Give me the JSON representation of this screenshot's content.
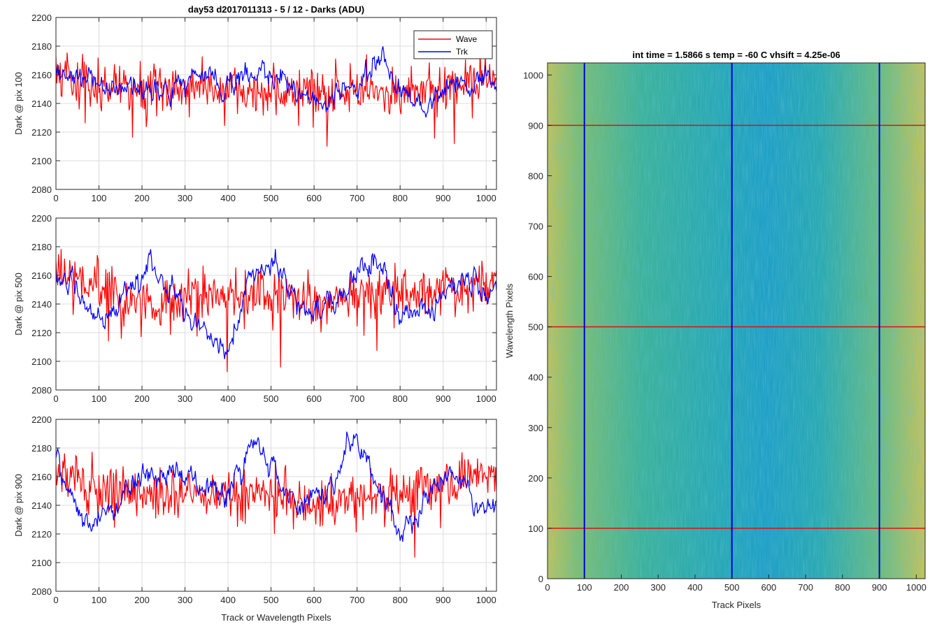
{
  "figure": {
    "title": "day53 d2017011313 - 5 / 12 - Darks (ADU)"
  },
  "chart_data": [
    {
      "type": "line",
      "ylabel": "Dark @ pix 100",
      "xlabel": "",
      "xlim": [
        0,
        1024
      ],
      "ylim": [
        2080,
        2200
      ],
      "xticks": [
        0,
        100,
        200,
        300,
        400,
        500,
        600,
        700,
        800,
        900,
        1000
      ],
      "yticks": [
        2080,
        2100,
        2120,
        2140,
        2160,
        2180,
        2200
      ],
      "grid": true,
      "legend": {
        "position": "top-right",
        "entries": [
          "Wave",
          "Trk"
        ]
      },
      "series": [
        {
          "name": "Wave",
          "color": "#ff0000",
          "mean": 2150,
          "noise": 8,
          "envelope": [
            [
              0,
              2162
            ],
            [
              100,
              2152
            ],
            [
              300,
              2150
            ],
            [
              500,
              2147
            ],
            [
              700,
              2148
            ],
            [
              900,
              2150
            ],
            [
              1024,
              2158
            ]
          ]
        },
        {
          "name": "Trk",
          "color": "#0000ff",
          "mean": 2152,
          "noise": 4,
          "envelope": [
            [
              0,
              2157
            ],
            [
              50,
              2158
            ],
            [
              120,
              2150
            ],
            [
              200,
              2150
            ],
            [
              280,
              2152
            ],
            [
              350,
              2163
            ],
            [
              380,
              2150
            ],
            [
              430,
              2158
            ],
            [
              480,
              2160
            ],
            [
              550,
              2150
            ],
            [
              620,
              2140
            ],
            [
              700,
              2155
            ],
            [
              760,
              2172
            ],
            [
              800,
              2150
            ],
            [
              850,
              2140
            ],
            [
              900,
              2150
            ],
            [
              950,
              2158
            ],
            [
              1000,
              2158
            ],
            [
              1024,
              2150
            ]
          ]
        }
      ]
    },
    {
      "type": "line",
      "ylabel": "Dark @ pix 500",
      "xlabel": "",
      "xlim": [
        0,
        1024
      ],
      "ylim": [
        2080,
        2200
      ],
      "xticks": [
        0,
        100,
        200,
        300,
        400,
        500,
        600,
        700,
        800,
        900,
        1000
      ],
      "yticks": [
        2080,
        2100,
        2120,
        2140,
        2160,
        2180,
        2200
      ],
      "grid": true,
      "series": [
        {
          "name": "Wave",
          "color": "#ff0000",
          "mean": 2148,
          "noise": 9,
          "envelope": [
            [
              0,
              2160
            ],
            [
              100,
              2155
            ],
            [
              200,
              2140
            ],
            [
              300,
              2145
            ],
            [
              400,
              2148
            ],
            [
              500,
              2145
            ],
            [
              600,
              2140
            ],
            [
              700,
              2145
            ],
            [
              800,
              2150
            ],
            [
              900,
              2152
            ],
            [
              1024,
              2155
            ]
          ]
        },
        {
          "name": "Trk",
          "color": "#0000ff",
          "mean": 2145,
          "noise": 4,
          "envelope": [
            [
              0,
              2165
            ],
            [
              40,
              2150
            ],
            [
              90,
              2128
            ],
            [
              150,
              2140
            ],
            [
              220,
              2168
            ],
            [
              290,
              2140
            ],
            [
              330,
              2125
            ],
            [
              380,
              2110
            ],
            [
              400,
              2105
            ],
            [
              450,
              2160
            ],
            [
              500,
              2172
            ],
            [
              560,
              2140
            ],
            [
              620,
              2135
            ],
            [
              700,
              2160
            ],
            [
              760,
              2170
            ],
            [
              800,
              2130
            ],
            [
              850,
              2140
            ],
            [
              900,
              2145
            ],
            [
              960,
              2160
            ],
            [
              1024,
              2145
            ]
          ]
        }
      ]
    },
    {
      "type": "line",
      "ylabel": "Dark @ pix 900",
      "xlabel": "Track or Wavelength Pixels",
      "xlim": [
        0,
        1024
      ],
      "ylim": [
        2080,
        2200
      ],
      "xticks": [
        0,
        100,
        200,
        300,
        400,
        500,
        600,
        700,
        800,
        900,
        1000
      ],
      "yticks": [
        2080,
        2100,
        2120,
        2140,
        2160,
        2180,
        2200
      ],
      "grid": true,
      "series": [
        {
          "name": "Wave",
          "color": "#ff0000",
          "mean": 2150,
          "noise": 9,
          "envelope": [
            [
              0,
              2160
            ],
            [
              100,
              2152
            ],
            [
              300,
              2148
            ],
            [
              500,
              2148
            ],
            [
              600,
              2140
            ],
            [
              700,
              2145
            ],
            [
              800,
              2148
            ],
            [
              900,
              2155
            ],
            [
              1024,
              2162
            ]
          ]
        },
        {
          "name": "Trk",
          "color": "#0000ff",
          "mean": 2150,
          "noise": 4,
          "envelope": [
            [
              0,
              2175
            ],
            [
              60,
              2125
            ],
            [
              140,
              2140
            ],
            [
              200,
              2162
            ],
            [
              280,
              2168
            ],
            [
              330,
              2150
            ],
            [
              360,
              2155
            ],
            [
              400,
              2145
            ],
            [
              460,
              2182
            ],
            [
              500,
              2170
            ],
            [
              560,
              2135
            ],
            [
              630,
              2150
            ],
            [
              690,
              2185
            ],
            [
              760,
              2150
            ],
            [
              800,
              2120
            ],
            [
              860,
              2145
            ],
            [
              900,
              2165
            ],
            [
              950,
              2158
            ],
            [
              1000,
              2125
            ],
            [
              1024,
              2145
            ]
          ]
        }
      ]
    },
    {
      "type": "heatmap",
      "title": "int time = 1.5866 s    temp = -60 C    vhsift = 4.25e-06",
      "xlabel": "Track Pixels",
      "ylabel": "Wavelength Pixels",
      "xlim": [
        0,
        1024
      ],
      "ylim": [
        0,
        1024
      ],
      "xticks": [
        0,
        100,
        200,
        300,
        400,
        500,
        600,
        700,
        800,
        900,
        1000
      ],
      "yticks": [
        0,
        100,
        200,
        300,
        400,
        500,
        600,
        700,
        800,
        900,
        1000
      ],
      "grid": false,
      "colors": {
        "low": "#1f9ad0",
        "mid": "#26b5a2",
        "high": "#d6c050"
      },
      "vertical_markers": {
        "color": "#0000cc",
        "x": [
          100,
          500,
          900
        ]
      },
      "horizontal_markers": {
        "color": "#dd1111",
        "y": [
          100,
          500,
          900
        ]
      }
    }
  ]
}
